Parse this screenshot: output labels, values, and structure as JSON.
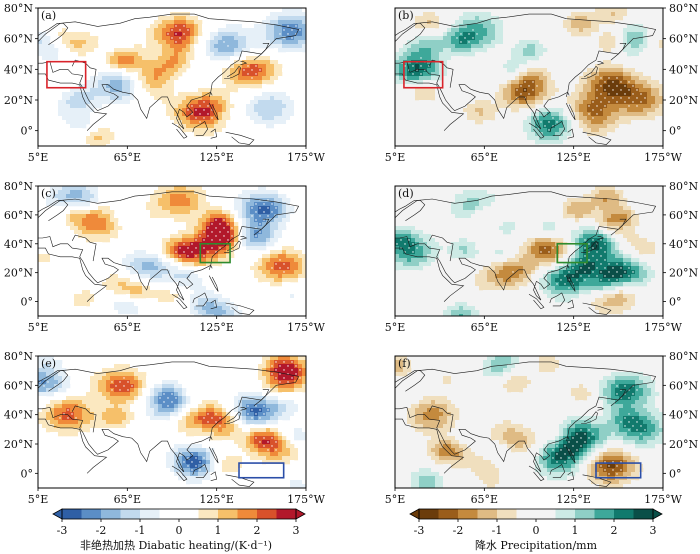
{
  "chart_data": [
    {
      "type": "heatmap",
      "panel": "(a)",
      "variable": "Diabatic heating",
      "title": "",
      "box_color": "#d9232a",
      "box_lon": [
        11,
        37
      ],
      "box_lat": [
        28,
        45
      ],
      "x_ticks": [
        "5°E",
        "65°E",
        "125°E",
        "175°W"
      ],
      "y_ticks": [
        "0°",
        "20°N",
        "40°N",
        "60°N",
        "80°N"
      ],
      "y_axis_side": "left",
      "hotspots": [
        {
          "lon": 148,
          "lat": 40,
          "v": 2.6
        },
        {
          "lon": 118,
          "lat": 12,
          "v": 2.9
        },
        {
          "lon": 95,
          "lat": 60,
          "v": 2.2
        },
        {
          "lon": 60,
          "lat": 30,
          "v": -2.0
        },
        {
          "lon": 175,
          "lat": 65,
          "v": -2.4
        },
        {
          "lon": 30,
          "lat": 62,
          "v": 2.0
        },
        {
          "lon": 160,
          "lat": 15,
          "v": -1.5
        },
        {
          "lon": 140,
          "lat": 55,
          "v": -2.2
        },
        {
          "lon": 80,
          "lat": 35,
          "v": 1.8
        }
      ]
    },
    {
      "type": "heatmap",
      "panel": "(b)",
      "variable": "Precipitation",
      "title": "",
      "box_color": "#d9232a",
      "box_lon": [
        11,
        37
      ],
      "box_lat": [
        28,
        45
      ],
      "x_ticks": [
        "5°E",
        "65°E",
        "125°E",
        "175°W"
      ],
      "y_ticks": [
        "0°",
        "20°N",
        "40°N",
        "60°N",
        "80°N"
      ],
      "y_axis_side": "right",
      "hotspots": [
        {
          "lon": 150,
          "lat": 30,
          "v": -2.5
        },
        {
          "lon": 135,
          "lat": 10,
          "v": -2.8
        },
        {
          "lon": 110,
          "lat": 5,
          "v": 2.5
        },
        {
          "lon": 20,
          "lat": 40,
          "v": 2.6
        },
        {
          "lon": 95,
          "lat": 25,
          "v": -1.8
        },
        {
          "lon": 160,
          "lat": 60,
          "v": 2.2
        },
        {
          "lon": 60,
          "lat": 65,
          "v": 1.8
        },
        {
          "lon": 170,
          "lat": 20,
          "v": -2.0
        }
      ]
    },
    {
      "type": "heatmap",
      "panel": "(c)",
      "variable": "Diabatic heating",
      "title": "",
      "box_color": "#2e8b2e",
      "box_lon": [
        114,
        134
      ],
      "box_lat": [
        27,
        40
      ],
      "x_ticks": [
        "5°E",
        "65°E",
        "125°E",
        "175°W"
      ],
      "y_ticks": [
        "0°",
        "20°N",
        "40°N",
        "60°N",
        "80°N"
      ],
      "y_axis_side": "left",
      "hotspots": [
        {
          "lon": 130,
          "lat": 45,
          "v": 2.8
        },
        {
          "lon": 148,
          "lat": 45,
          "v": -2.6
        },
        {
          "lon": 110,
          "lat": 35,
          "v": 2.2
        },
        {
          "lon": 30,
          "lat": 70,
          "v": -2.2
        },
        {
          "lon": 45,
          "lat": 55,
          "v": 2.0
        },
        {
          "lon": 80,
          "lat": 25,
          "v": -1.8
        },
        {
          "lon": 168,
          "lat": 25,
          "v": 2.3
        },
        {
          "lon": 100,
          "lat": 70,
          "v": 1.8
        },
        {
          "lon": 155,
          "lat": 65,
          "v": -2.0
        }
      ]
    },
    {
      "type": "heatmap",
      "panel": "(d)",
      "variable": "Precipitation",
      "title": "",
      "box_color": "#2e8b2e",
      "box_lon": [
        114,
        134
      ],
      "box_lat": [
        27,
        40
      ],
      "x_ticks": [
        "5°E",
        "65°E",
        "125°E",
        "175°W"
      ],
      "y_ticks": [
        "0°",
        "20°N",
        "40°N",
        "60°N",
        "80°N"
      ],
      "y_axis_side": "right",
      "hotspots": [
        {
          "lon": 140,
          "lat": 40,
          "v": 2.8
        },
        {
          "lon": 120,
          "lat": 15,
          "v": 2.5
        },
        {
          "lon": 160,
          "lat": 20,
          "v": 2.2
        },
        {
          "lon": 15,
          "lat": 35,
          "v": 2.0
        },
        {
          "lon": 110,
          "lat": 35,
          "v": -2.0
        },
        {
          "lon": 80,
          "lat": 20,
          "v": -1.6
        },
        {
          "lon": 150,
          "lat": 5,
          "v": -2.0
        },
        {
          "lon": 60,
          "lat": 65,
          "v": 1.6
        }
      ]
    },
    {
      "type": "heatmap",
      "panel": "(e)",
      "variable": "Diabatic heating",
      "title": "",
      "box_color": "#2b4ea8",
      "box_lon": [
        140,
        170
      ],
      "box_lat": [
        -3,
        7
      ],
      "x_ticks": [
        "5°E",
        "65°E",
        "125°E",
        "175°W"
      ],
      "y_ticks": [
        "0°",
        "20°N",
        "40°N",
        "60°N",
        "80°N"
      ],
      "y_axis_side": "left",
      "hotspots": [
        {
          "lon": 150,
          "lat": 42,
          "v": -2.8
        },
        {
          "lon": 125,
          "lat": 35,
          "v": 2.6
        },
        {
          "lon": 25,
          "lat": 40,
          "v": 2.2
        },
        {
          "lon": 60,
          "lat": 60,
          "v": 2.0
        },
        {
          "lon": 95,
          "lat": 45,
          "v": -2.0
        },
        {
          "lon": 165,
          "lat": 20,
          "v": 2.2
        },
        {
          "lon": 10,
          "lat": 65,
          "v": -2.2
        },
        {
          "lon": 110,
          "lat": 10,
          "v": -1.8
        },
        {
          "lon": 170,
          "lat": 65,
          "v": 1.8
        }
      ]
    },
    {
      "type": "heatmap",
      "panel": "(f)",
      "variable": "Precipitation",
      "title": "",
      "box_color": "#2b4ea8",
      "box_lon": [
        140,
        170
      ],
      "box_lat": [
        -3,
        7
      ],
      "x_ticks": [
        "5°E",
        "65°E",
        "125°E",
        "175°W"
      ],
      "y_ticks": [
        "0°",
        "20°N",
        "40°N",
        "60°N",
        "80°N"
      ],
      "y_axis_side": "right",
      "hotspots": [
        {
          "lon": 160,
          "lat": 55,
          "v": 2.6
        },
        {
          "lon": 130,
          "lat": 25,
          "v": 2.5
        },
        {
          "lon": 150,
          "lat": 5,
          "v": -2.6
        },
        {
          "lon": 115,
          "lat": 10,
          "v": 2.2
        },
        {
          "lon": 30,
          "lat": 40,
          "v": -1.8
        },
        {
          "lon": 85,
          "lat": 20,
          "v": -1.6
        },
        {
          "lon": 170,
          "lat": 30,
          "v": 2.0
        }
      ]
    }
  ],
  "panels": [
    {
      "label": "(a)"
    },
    {
      "label": "(b)"
    },
    {
      "label": "(c)"
    },
    {
      "label": "(d)"
    },
    {
      "label": "(e)"
    },
    {
      "label": "(f)"
    }
  ],
  "colorbars": {
    "heating": {
      "ticks": [
        "-3",
        "-2",
        "-1",
        "0",
        "1",
        "2",
        "3"
      ],
      "title": "非绝热加热 Diabatic heating/(K·d⁻¹)",
      "colors": [
        "#2f5fa5",
        "#5b8ec6",
        "#8fb8dc",
        "#c2daee",
        "#e6f0f8",
        "#ffffff",
        "#ffffff",
        "#fbe8c0",
        "#f6c06a",
        "#ef8a3a",
        "#d8512b",
        "#b2182b"
      ]
    },
    "precip": {
      "ticks": [
        "-3",
        "-2",
        "-1",
        "0",
        "1",
        "2",
        "3"
      ],
      "title": "降水 Precipitation/mm",
      "colors": [
        "#6b3c0b",
        "#9a5d1a",
        "#c48a3e",
        "#dfbb84",
        "#f0dfbe",
        "#f3f3f3",
        "#f3f3f3",
        "#cdeae5",
        "#8fcfc6",
        "#3ea89a",
        "#117a6d",
        "#0a4f48"
      ]
    }
  }
}
